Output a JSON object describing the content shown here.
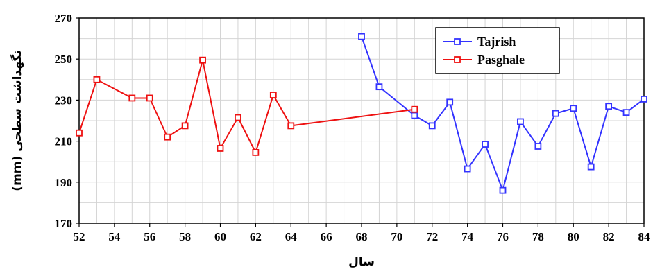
{
  "chart_data": {
    "type": "line",
    "title": "",
    "xlabel": "سال",
    "ylabel": "نگهداشت سطحی (mm)",
    "xlim": [
      52,
      84
    ],
    "ylim": [
      170,
      270
    ],
    "xticks": [
      52,
      54,
      56,
      58,
      60,
      62,
      64,
      66,
      68,
      70,
      72,
      74,
      76,
      78,
      80,
      82,
      84
    ],
    "yticks": [
      170,
      190,
      210,
      230,
      250,
      270
    ],
    "grid": true,
    "legend_position": "top-right",
    "series": [
      {
        "name": "Tajrish",
        "color": "#3333ff",
        "marker": "square",
        "x": [
          68,
          69,
          71,
          72,
          73,
          74,
          75,
          76,
          77,
          78,
          79,
          80,
          81,
          82,
          83,
          84
        ],
        "y": [
          261,
          236.5,
          222.5,
          217.5,
          229,
          196.5,
          208.5,
          186,
          219.5,
          207.5,
          223.5,
          226,
          197.5,
          227,
          224,
          230.5
        ]
      },
      {
        "name": "Pasghale",
        "color": "#ee1111",
        "marker": "square",
        "x": [
          52,
          53,
          55,
          56,
          57,
          58,
          59,
          60,
          61,
          62,
          63,
          64,
          71
        ],
        "y": [
          214,
          240,
          231,
          231,
          212,
          217.5,
          249.5,
          206.5,
          221.5,
          204.5,
          232.5,
          217.5,
          225.5
        ]
      }
    ]
  }
}
